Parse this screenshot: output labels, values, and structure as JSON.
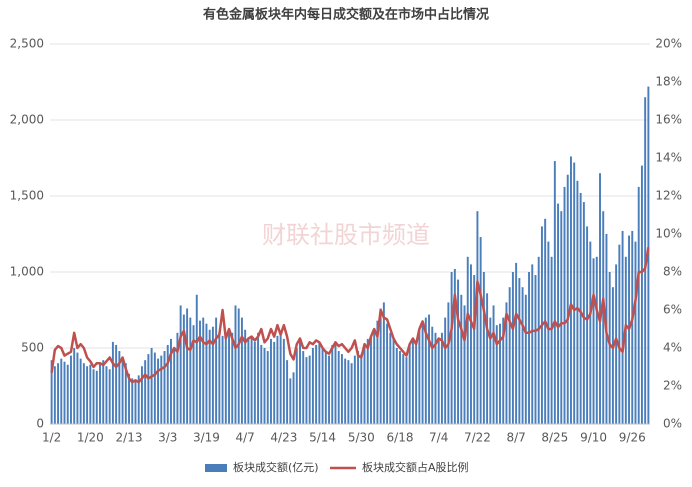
{
  "chart_data": {
    "type": "bar-line",
    "title": "有色金属板块年内每日成交额及在市场中占比情况",
    "watermark": "财联社股市频道",
    "categories": [
      "1/2",
      null,
      null,
      null,
      null,
      null,
      null,
      null,
      null,
      null,
      null,
      null,
      "1/20",
      null,
      null,
      null,
      null,
      null,
      null,
      null,
      null,
      null,
      null,
      null,
      "2/13",
      null,
      null,
      null,
      null,
      null,
      null,
      null,
      null,
      null,
      null,
      null,
      "3/3",
      null,
      null,
      null,
      null,
      null,
      null,
      null,
      null,
      null,
      null,
      null,
      "3/19",
      null,
      null,
      null,
      null,
      null,
      null,
      null,
      null,
      null,
      null,
      null,
      "4/7",
      null,
      null,
      null,
      null,
      null,
      null,
      null,
      null,
      null,
      null,
      null,
      "4/23",
      null,
      null,
      null,
      null,
      null,
      null,
      null,
      null,
      null,
      null,
      null,
      "5/14",
      null,
      null,
      null,
      null,
      null,
      null,
      null,
      null,
      null,
      null,
      null,
      "5/30",
      null,
      null,
      null,
      null,
      null,
      null,
      null,
      null,
      null,
      null,
      null,
      "6/18",
      null,
      null,
      null,
      null,
      null,
      null,
      null,
      null,
      null,
      null,
      null,
      "7/4",
      null,
      null,
      null,
      null,
      null,
      null,
      null,
      null,
      null,
      null,
      null,
      "7/22",
      null,
      null,
      null,
      null,
      null,
      null,
      null,
      null,
      null,
      null,
      null,
      "8/7",
      null,
      null,
      null,
      null,
      null,
      null,
      null,
      null,
      null,
      null,
      null,
      "8/25",
      null,
      null,
      null,
      null,
      null,
      null,
      null,
      null,
      null,
      null,
      null,
      "9/10",
      null,
      null,
      null,
      null,
      null,
      null,
      null,
      null,
      null,
      null,
      null,
      "9/26",
      null,
      null,
      null,
      null,
      null
    ],
    "series": [
      {
        "name": "板块成交额(亿元)",
        "color": "#4a7ebb",
        "values": [
          420,
          380,
          400,
          430,
          410,
          390,
          450,
          500,
          470,
          430,
          400,
          380,
          390,
          360,
          350,
          400,
          420,
          380,
          360,
          540,
          520,
          480,
          430,
          400,
          330,
          300,
          280,
          320,
          380,
          420,
          460,
          500,
          470,
          430,
          450,
          480,
          520,
          560,
          500,
          600,
          780,
          720,
          760,
          700,
          650,
          850,
          680,
          700,
          660,
          620,
          640,
          700,
          600,
          580,
          560,
          620,
          600,
          780,
          760,
          700,
          620,
          560,
          580,
          540,
          600,
          520,
          500,
          480,
          560,
          540,
          580,
          600,
          560,
          420,
          300,
          340,
          500,
          560,
          480,
          440,
          450,
          500,
          520,
          540,
          500,
          480,
          450,
          520,
          540,
          480,
          460,
          430,
          420,
          400,
          450,
          480,
          460,
          520,
          560,
          580,
          620,
          680,
          760,
          800,
          660,
          600,
          560,
          500,
          480,
          460,
          440,
          520,
          560,
          540,
          620,
          680,
          700,
          720,
          640,
          600,
          560,
          600,
          700,
          800,
          1000,
          1020,
          950,
          850,
          780,
          1100,
          1050,
          980,
          1400,
          1230,
          1000,
          860,
          700,
          780,
          650,
          660,
          700,
          800,
          900,
          1000,
          1060,
          960,
          900,
          850,
          1000,
          1050,
          980,
          1100,
          1300,
          1350,
          1200,
          1100,
          1730,
          1450,
          1400,
          1560,
          1640,
          1760,
          1720,
          1600,
          1520,
          1460,
          1300,
          1200,
          1090,
          1100,
          1650,
          1400,
          1250,
          1000,
          900,
          1050,
          1180,
          1270,
          1100,
          1240,
          1270,
          1200,
          1560,
          1700,
          2150,
          2220
        ]
      },
      {
        "name": "板块成交额占A股比例",
        "color": "#c0504d",
        "axis": "y2",
        "values": [
          2.7,
          3.9,
          4.1,
          4.0,
          3.6,
          3.7,
          3.8,
          4.8,
          4.0,
          4.2,
          4.0,
          3.5,
          3.3,
          3.0,
          3.2,
          3.2,
          3.1,
          3.3,
          3.5,
          3.2,
          3.0,
          3.2,
          3.5,
          2.9,
          2.4,
          2.2,
          2.3,
          2.2,
          2.4,
          2.6,
          2.4,
          2.5,
          2.6,
          2.8,
          2.9,
          3.0,
          3.2,
          3.7,
          4.0,
          3.8,
          4.6,
          4.9,
          4.0,
          3.9,
          4.4,
          4.3,
          4.6,
          4.3,
          4.2,
          4.4,
          4.2,
          4.5,
          4.7,
          6.0,
          4.5,
          5.0,
          4.5,
          4.0,
          4.2,
          4.6,
          4.3,
          4.5,
          4.6,
          4.4,
          4.6,
          5.0,
          4.3,
          4.5,
          5.0,
          4.6,
          5.2,
          4.7,
          5.2,
          4.6,
          3.7,
          3.4,
          4.2,
          4.5,
          4.0,
          4.0,
          4.3,
          4.2,
          4.4,
          4.3,
          4.0,
          3.8,
          3.7,
          4.0,
          4.3,
          4.1,
          4.2,
          4.0,
          3.8,
          4.0,
          4.4,
          3.6,
          3.5,
          4.2,
          4.0,
          4.6,
          5.0,
          4.6,
          6.0,
          5.6,
          5.5,
          5.0,
          4.5,
          4.2,
          4.0,
          3.8,
          3.6,
          4.2,
          4.5,
          4.2,
          5.0,
          5.4,
          4.8,
          4.4,
          4.0,
          4.2,
          4.5,
          4.4,
          4.0,
          4.2,
          5.0,
          6.8,
          5.5,
          5.0,
          4.4,
          5.8,
          5.4,
          5.0,
          7.5,
          6.8,
          6.0,
          5.0,
          4.5,
          4.8,
          4.2,
          4.4,
          4.6,
          5.8,
          5.4,
          5.0,
          5.8,
          5.5,
          5.2,
          4.8,
          4.8,
          4.9,
          4.9,
          5.0,
          5.2,
          5.4,
          5.0,
          5.0,
          5.4,
          5.1,
          5.3,
          5.3,
          5.5,
          6.3,
          6.0,
          6.1,
          5.9,
          5.6,
          5.5,
          5.8,
          6.8,
          6.0,
          5.4,
          6.6,
          4.8,
          4.2,
          4.0,
          4.5,
          4.0,
          3.8,
          5.2,
          5.0,
          5.5,
          6.5,
          8.0,
          8.0,
          8.2,
          9.3
        ]
      }
    ],
    "ylim": [
      0,
      2500
    ],
    "yticks": [
      0,
      500,
      {
        "value": 1000,
        "label": "1,000"
      },
      {
        "value": 1500,
        "label": "1,500"
      },
      {
        "value": 2000,
        "label": "2,000"
      },
      {
        "value": 2500,
        "label": "2,500"
      }
    ],
    "y2lim": [
      0,
      20
    ],
    "y2ticks": [
      {
        "value": 0,
        "label": "0%"
      },
      {
        "value": 2,
        "label": "2%"
      },
      {
        "value": 4,
        "label": "4%"
      },
      {
        "value": 6,
        "label": "6%"
      },
      {
        "value": 8,
        "label": "8%"
      },
      {
        "value": 10,
        "label": "10%"
      },
      {
        "value": 12,
        "label": "12%"
      },
      {
        "value": 14,
        "label": "14%"
      },
      {
        "value": 16,
        "label": "16%"
      },
      {
        "value": 18,
        "label": "18%"
      },
      {
        "value": 20,
        "label": "20%"
      }
    ],
    "grid": true,
    "legend": "bottom"
  }
}
